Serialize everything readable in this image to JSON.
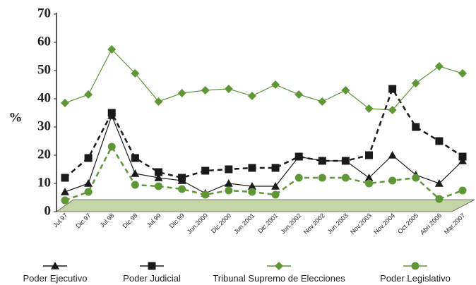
{
  "chart_data": {
    "type": "line",
    "y_label": "%",
    "categories": [
      "Jul.97",
      "Dic.97",
      "Jul.98",
      "Dic.98",
      "Jul.99",
      "Dic.99",
      "Jun.2000",
      "Dic.2000",
      "Jun.2001",
      "Dic.2001",
      "Jun.2002",
      "Nov.2002",
      "Jun.2003",
      "Nov.2003",
      "Nov.2004",
      "Oct.2005",
      "Abri.2006",
      "Mar.2007"
    ],
    "ylim": [
      0,
      70
    ],
    "yticks": [
      0,
      10,
      20,
      30,
      40,
      50,
      60,
      70
    ],
    "series": [
      {
        "name": "Poder Ejecutivo",
        "color": "#1a1a1a",
        "marker": "triangle",
        "dashed": false,
        "values": [
          7,
          10,
          34,
          13.5,
          12,
          11,
          6.5,
          10,
          9,
          9,
          19.5,
          18,
          18,
          12,
          20,
          13,
          10,
          18
        ]
      },
      {
        "name": "Poder Judicial",
        "color": "#1a1a1a",
        "marker": "square",
        "dashed": true,
        "values": [
          12,
          19,
          35,
          19,
          14,
          12,
          14.5,
          15,
          15.5,
          15.5,
          19.5,
          18,
          18,
          20,
          43.5,
          30,
          25,
          19.5
        ]
      },
      {
        "name": "Tribunal Supremo de Elecciones",
        "color": "#5f9636",
        "marker": "diamond",
        "dashed": false,
        "values": [
          38.5,
          41.5,
          57.5,
          49,
          39,
          42,
          43,
          43.5,
          41,
          45,
          41.5,
          39,
          43,
          36.5,
          36,
          45.5,
          51.5,
          49
        ]
      },
      {
        "name": "Poder Legislativo",
        "color": "#5f9636",
        "marker": "circle",
        "dashed": true,
        "values": [
          4,
          7,
          23,
          9.5,
          9,
          8,
          6,
          7.5,
          7,
          6,
          12,
          12,
          12,
          10,
          11,
          12,
          4.5,
          7.5
        ]
      }
    ]
  }
}
